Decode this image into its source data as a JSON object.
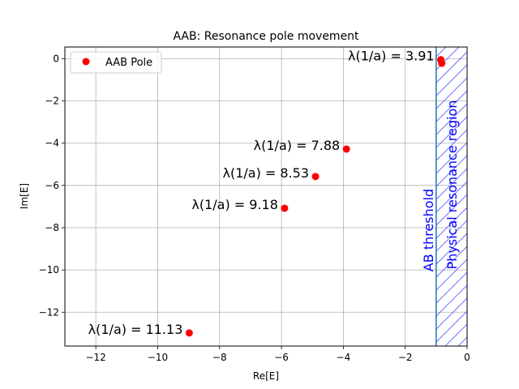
{
  "chart_data": {
    "type": "scatter",
    "title": "AAB: Resonance pole movement",
    "xlabel": "Re[E]",
    "ylabel": "Im[E]",
    "xlim": [
      -13.0,
      0.0
    ],
    "ylim": [
      -13.6,
      0.55
    ],
    "xticks": [
      -12,
      -10,
      -8,
      -6,
      -4,
      -2,
      0
    ],
    "xtick_labels": [
      "−12",
      "−10",
      "−8",
      "−6",
      "−4",
      "−2",
      "0"
    ],
    "yticks": [
      0,
      -2,
      -4,
      -6,
      -8,
      -10,
      -12
    ],
    "ytick_labels": [
      "0",
      "−2",
      "−4",
      "−6",
      "−8",
      "−10",
      "−12"
    ],
    "grid": true,
    "legend": {
      "position": "top-left",
      "entries": [
        "AAB Pole"
      ]
    },
    "series": [
      {
        "name": "AAB Pole",
        "color": "#ff0000",
        "points": [
          {
            "x": -0.85,
            "y": -0.05
          },
          {
            "x": -0.82,
            "y": -0.22
          },
          {
            "x": -3.9,
            "y": -4.28
          },
          {
            "x": -4.9,
            "y": -5.58
          },
          {
            "x": -5.9,
            "y": -7.08
          },
          {
            "x": -8.98,
            "y": -12.98
          }
        ]
      }
    ],
    "annotations": [
      {
        "label": "λ(1/a) = 3.91",
        "x": -0.85,
        "y": -0.05
      },
      {
        "label": "λ(1/a) = 7.88",
        "x": -3.9,
        "y": -4.28
      },
      {
        "label": "λ(1/a) = 8.53",
        "x": -4.9,
        "y": -5.58
      },
      {
        "label": "λ(1/a) = 9.18",
        "x": -5.9,
        "y": -7.08
      },
      {
        "label": "λ(1/a) = 11.13",
        "x": -8.98,
        "y": -12.98
      }
    ],
    "threshold": {
      "x": -1.0,
      "label": "AB threshold",
      "color": "#1f77b4",
      "label_color": "#0000ff"
    },
    "region": {
      "x_from": -1.0,
      "x_to": 0.0,
      "label": "Physical resonance region",
      "color": "#0000ff",
      "hatch": "diagonal"
    }
  }
}
